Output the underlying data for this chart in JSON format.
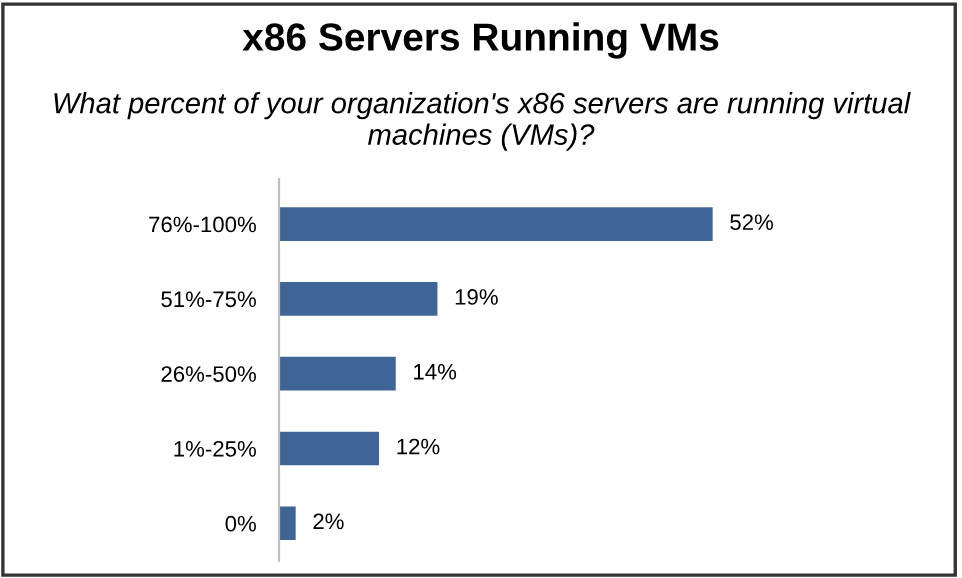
{
  "chart_data": {
    "type": "bar",
    "orientation": "horizontal",
    "title": "x86 Servers Running VMs",
    "subtitle": "What percent of your organization's x86 servers are running virtual machines (VMs)?",
    "categories": [
      "76%-100%",
      "51%-75%",
      "26%-50%",
      "1%-25%",
      "0%"
    ],
    "values": [
      52,
      19,
      14,
      12,
      2
    ],
    "value_labels": [
      "52%",
      "19%",
      "14%",
      "12%",
      "2%"
    ],
    "color": "#3f6496",
    "grid": false,
    "legend": false
  }
}
